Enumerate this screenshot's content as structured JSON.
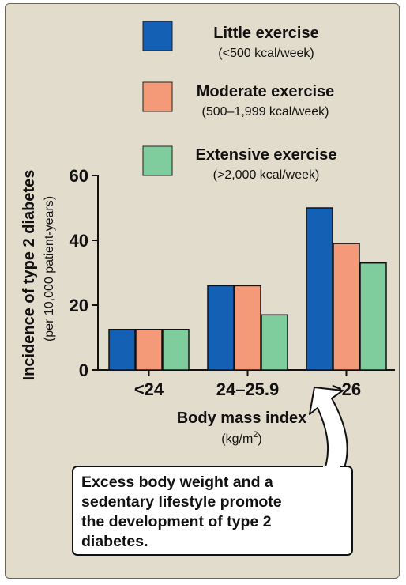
{
  "chart_data": {
    "type": "bar",
    "categories": [
      "<24",
      "24–25.9",
      ">26"
    ],
    "series": [
      {
        "name": "Little exercise",
        "subtitle": "(<500 kcal/week)",
        "values": [
          12.5,
          26,
          50
        ]
      },
      {
        "name": "Moderate exercise",
        "subtitle": "(500–1,999 kcal/week)",
        "values": [
          12.5,
          26,
          39
        ]
      },
      {
        "name": "Extensive exercise",
        "subtitle": "(>2,000 kcal/week)",
        "values": [
          12.5,
          17,
          33
        ]
      }
    ],
    "ylim": [
      0,
      60
    ],
    "yticks": [
      0,
      20,
      40,
      60
    ],
    "ylabel": "Incidence of type 2 diabetes",
    "ylabel_sub": "(per 10,000 patient-years)",
    "xlabel": "Body mass index",
    "xlabel_unit_base": "(kg/m",
    "xlabel_unit_sup": "2",
    "xlabel_unit_end": ")",
    "legend_position": "top",
    "grid": false
  },
  "colors": {
    "little": "#1460b4",
    "moderate": "#f49a78",
    "extensive": "#7fcc9c",
    "panel": "#e2dccc"
  },
  "callout": {
    "lines": [
      "Excess body weight and a",
      "sedentary lifestyle promote",
      "the development of type 2",
      "diabetes."
    ]
  }
}
